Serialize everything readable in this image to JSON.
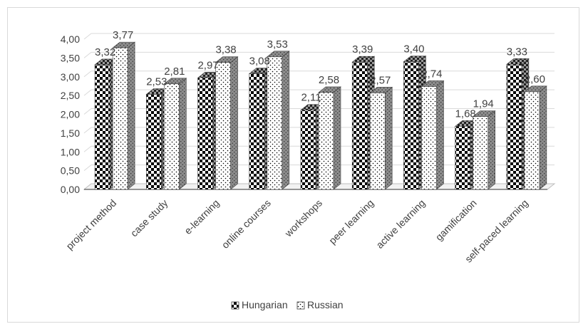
{
  "chart_data": {
    "type": "bar",
    "title": "",
    "xlabel": "",
    "ylabel": "",
    "ylim": [
      0,
      4
    ],
    "y_ticks": [
      "0,00",
      "0,50",
      "1,00",
      "1,50",
      "2,00",
      "2,50",
      "3,00",
      "3,50",
      "4,00"
    ],
    "categories": [
      "project method",
      "case study",
      "e-learning",
      "online courses",
      "workshops",
      "peer learning",
      "active learning",
      "gamification",
      "self-paced learning"
    ],
    "series": [
      {
        "name": "Hungarian",
        "values": [
          3.32,
          2.53,
          2.97,
          3.08,
          2.11,
          3.39,
          3.4,
          1.68,
          3.33
        ],
        "labels": [
          "3,32",
          "2,53",
          "2,97",
          "3,08",
          "2,11",
          "3,39",
          "3,40",
          "1,68",
          "3,33"
        ],
        "pattern": "checkerboard"
      },
      {
        "name": "Russian",
        "values": [
          3.77,
          2.81,
          3.38,
          3.53,
          2.58,
          2.57,
          2.74,
          1.94,
          2.6
        ],
        "labels": [
          "3,77",
          "2,81",
          "3,38",
          "3,53",
          "2,58",
          "2,57",
          "2,74",
          "1,94",
          "2,60"
        ],
        "pattern": "dotted"
      }
    ],
    "grid": true,
    "legend_position": "bottom",
    "style": "3d-column"
  }
}
